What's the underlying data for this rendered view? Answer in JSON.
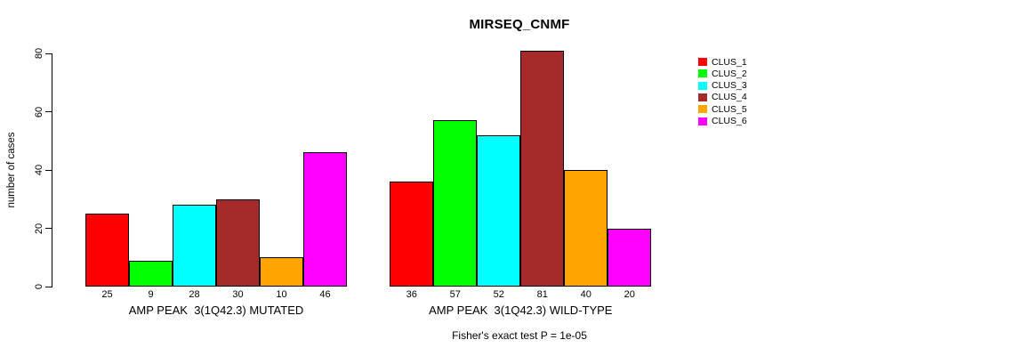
{
  "chart_data": {
    "type": "bar",
    "title": "MIRSEQ_CNMF",
    "ylabel": "number of cases",
    "ylim": [
      0,
      80
    ],
    "yticks": [
      0,
      20,
      40,
      60,
      80
    ],
    "grid": false,
    "legend_position": "top-right",
    "bar_value_labels": true,
    "categories": [
      "AMP PEAK  3(1Q42.3) MUTATED",
      "AMP PEAK  3(1Q42.3) WILD-TYPE"
    ],
    "series": [
      {
        "name": "CLUS_1",
        "color": "#FF0000",
        "values": [
          25,
          36
        ]
      },
      {
        "name": "CLUS_2",
        "color": "#00FF00",
        "values": [
          9,
          57
        ]
      },
      {
        "name": "CLUS_3",
        "color": "#00FFFF",
        "values": [
          28,
          52
        ]
      },
      {
        "name": "CLUS_4",
        "color": "#A52A2A",
        "values": [
          30,
          81
        ]
      },
      {
        "name": "CLUS_5",
        "color": "#FFA500",
        "values": [
          10,
          40
        ]
      },
      {
        "name": "CLUS_6",
        "color": "#FF00FF",
        "values": [
          46,
          20
        ]
      }
    ]
  },
  "caption": "Fisher's exact test P = 1e-05"
}
